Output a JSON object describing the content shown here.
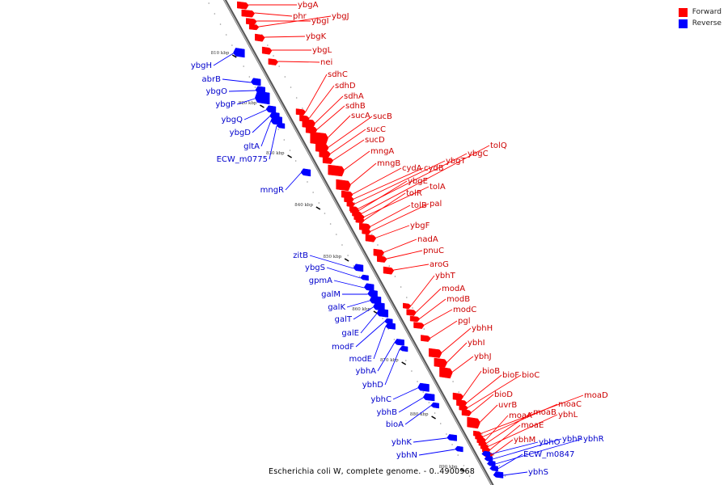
{
  "title": "Escherichia coli W, complete genome. - 0..4900968",
  "legend": [
    {
      "label": "Forward",
      "color": "#ff0000"
    },
    {
      "label": "Reverse",
      "color": "#0000ff"
    }
  ],
  "colors": {
    "forward": "#ff0000",
    "reverse": "#0000ff",
    "backbone": "#888888",
    "tick": "#000000"
  },
  "kbp_labels": [
    "810 kbp",
    "820 kbp",
    "830 kbp",
    "840 kbp",
    "850 kbp",
    "860 kbp",
    "870 kbp",
    "880 kbp",
    "890 kbp"
  ],
  "forward_genes": [
    "ybgA",
    "phr",
    "ybgI",
    "ybgJ",
    "ybgK",
    "ybgL",
    "nei",
    "sdhC",
    "sdhD",
    "sdhA",
    "sdhB",
    "sucA",
    "sucB",
    "sucC",
    "sucD",
    "mngA",
    "mngB",
    "cydA",
    "cydB",
    "ybgT",
    "ybgC",
    "tolQ",
    "ybgE",
    "tolA",
    "tolR",
    "tolB",
    "pal",
    "ybgF",
    "nadA",
    "pnuC",
    "aroG",
    "ybhT",
    "modA",
    "modB",
    "modC",
    "pgl",
    "ybhH",
    "ybhI",
    "ybhJ",
    "bioB",
    "bioF",
    "bioC",
    "bioD",
    "uvrB",
    "moaD",
    "moaC",
    "moaA",
    "moaB",
    "ybhL",
    "moaE",
    "ybhM"
  ],
  "reverse_genes": [
    "ybgH",
    "abrB",
    "ybgO",
    "ybgP",
    "ybgQ",
    "ybgD",
    "gltA",
    "ECW_m0775",
    "mngR",
    "zitB",
    "ybgS",
    "gpmA",
    "galM",
    "galK",
    "galT",
    "galE",
    "modF",
    "modE",
    "ybhA",
    "ybhD",
    "ybhC",
    "ybhB",
    "bioA",
    "ybhK",
    "ybhN",
    "ybhO",
    "ybhP",
    "ybhR",
    "ECW_m0847",
    "ybhS"
  ]
}
